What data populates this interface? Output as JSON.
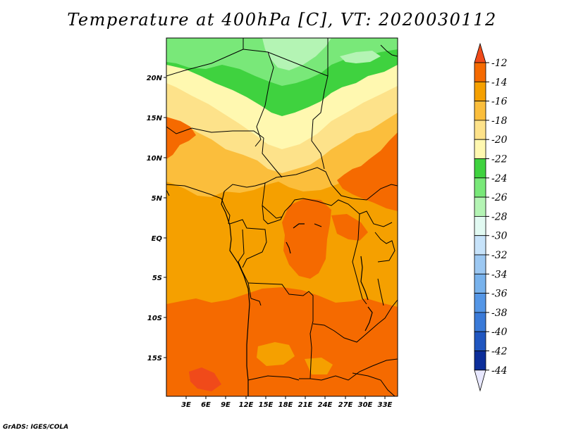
{
  "title": "Temperature at 400hPa [C], VT: 2020030112",
  "credit": "GrADS: IGES/COLA",
  "map": {
    "lat_labels": [
      "20N",
      "15N",
      "10N",
      "5N",
      "EQ",
      "5S",
      "10S",
      "15S"
    ],
    "lon_labels": [
      "3E",
      "6E",
      "9E",
      "12E",
      "15E",
      "18E",
      "21E",
      "24E",
      "27E",
      "30E",
      "33E"
    ]
  },
  "colorbar": {
    "labels": [
      "-12",
      "-14",
      "-16",
      "-18",
      "-20",
      "-22",
      "-24",
      "-26",
      "-28",
      "-30",
      "-32",
      "-34",
      "-36",
      "-38",
      "-40",
      "-42",
      "-44"
    ],
    "colors": {
      "above_-12": "#f04a1a",
      "-14_to_-12": "#f56a00",
      "-16_to_-14": "#f5a000",
      "-18_to_-16": "#fbbe3c",
      "-20_to_-18": "#fde28a",
      "-22_to_-20": "#fff8b0",
      "-24_to_-22": "#3fd23f",
      "-26_to_-24": "#79e879",
      "-28_to_-26": "#b4f4b4",
      "-30_to_-28": "#e2faf2",
      "-32_to_-30": "#c7e3fa",
      "-34_to_-32": "#9cc8f2",
      "-36_to_-34": "#78b2ec",
      "-38_to_-36": "#5496e6",
      "-40_to_-38": "#3a7ad8",
      "-42_to_-40": "#2056c0",
      "-44_to_-42": "#0c2e9a",
      "below_-44": "#0a1270",
      "min_tip": "#e8e8ff"
    }
  }
}
